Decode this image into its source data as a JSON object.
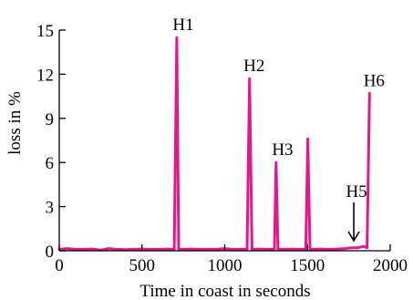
{
  "chart_data": {
    "type": "line",
    "title": "",
    "xlabel": "Time in coast in seconds",
    "ylabel": "loss in %",
    "xlim": [
      0,
      2000
    ],
    "ylim": [
      0,
      15
    ],
    "xticks": [
      0,
      500,
      1000,
      1500,
      2000
    ],
    "yticks": [
      0,
      3,
      6,
      9,
      12,
      15
    ],
    "grid": false,
    "color": "#e6168c",
    "series": [
      {
        "x": [
          0,
          50,
          100,
          150,
          200,
          250,
          300,
          350,
          400,
          450,
          500,
          550,
          600,
          650,
          695,
          710,
          722,
          735,
          750,
          800,
          850,
          900,
          950,
          1000,
          1050,
          1100,
          1135,
          1150,
          1165,
          1180,
          1200,
          1250,
          1300,
          1310,
          1322,
          1335,
          1350,
          1400,
          1450,
          1490,
          1502,
          1515,
          1530,
          1580,
          1630,
          1680,
          1730,
          1760,
          1800,
          1840,
          1860,
          1875
        ],
        "y": [
          0.1,
          0.15,
          0.1,
          0.1,
          0.12,
          0.05,
          0.15,
          0.1,
          0.08,
          0.1,
          0.12,
          0.1,
          0.1,
          0.12,
          0.1,
          14.5,
          0.1,
          0.1,
          0.1,
          0.12,
          0.1,
          0.1,
          0.1,
          0.15,
          0.1,
          0.1,
          0.1,
          11.7,
          0.1,
          0.1,
          0.12,
          0.1,
          0.1,
          6.0,
          0.1,
          0.1,
          0.1,
          0.12,
          0.1,
          0.1,
          7.6,
          0.1,
          0.1,
          0.12,
          0.1,
          0.12,
          0.15,
          0.2,
          0.2,
          0.3,
          0.2,
          10.7
        ]
      }
    ],
    "annotations": [
      {
        "text": "H1",
        "x": 722,
        "y": 14.5
      },
      {
        "text": "H2",
        "x": 1150,
        "y": 11.7
      },
      {
        "text": "H3",
        "x": 1322,
        "y": 6.0
      },
      {
        "text": "H5",
        "x": 1780,
        "y": 0.3
      },
      {
        "text": "H6",
        "x": 1875,
        "y": 10.7
      }
    ]
  }
}
